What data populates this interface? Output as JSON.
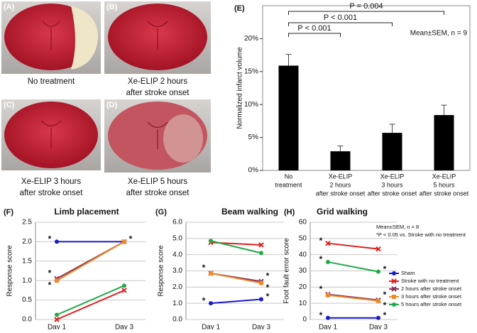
{
  "photos": [
    {
      "label": "(A)",
      "caption": [
        "No treatment"
      ]
    },
    {
      "label": "(B)",
      "caption": [
        "Xe-ELIP 2 hours",
        "after stroke onset"
      ]
    },
    {
      "label": "(C)",
      "caption": [
        "Xe-ELIP 3 hours",
        "after stroke onset"
      ]
    },
    {
      "label": "(D)",
      "caption": [
        "Xe-ELIP 5 hours",
        "after stroke onset"
      ]
    }
  ],
  "chart_data": [
    {
      "type": "bar",
      "panel": "(E)",
      "ylabel": "Normalized infarct volume",
      "categories": [
        [
          "No",
          "treatment"
        ],
        [
          "Xe-ELIP",
          "2 hours",
          "after stroke onset"
        ],
        [
          "Xe-ELIP",
          "3 hours",
          "after stroke onset"
        ],
        [
          "Xe-ELIP",
          "5 hours",
          "after stroke onset"
        ]
      ],
      "values": [
        15.9,
        2.9,
        5.7,
        8.4
      ],
      "errors": [
        1.7,
        0.8,
        1.3,
        1.5
      ],
      "color": "#000000",
      "ylim": [
        0,
        25
      ],
      "yticks": [
        {
          "value": 0,
          "label": "0%"
        },
        {
          "value": 5,
          "label": "5%"
        },
        {
          "value": 10,
          "label": "10%"
        },
        {
          "value": 15,
          "label": "15%"
        },
        {
          "value": 20,
          "label": "20%"
        }
      ],
      "comparisons": [
        "P < 0.001",
        "P < 0.001",
        "P = 0.004"
      ],
      "annotation": "Mean±SEM, n = 9"
    },
    {
      "type": "line",
      "panel": "(F)",
      "title": "Limb placement",
      "ylabel": "Response score",
      "categories": [
        "Day 1",
        "Day 3"
      ],
      "ylim": [
        0,
        2.5
      ],
      "yticks": [
        {
          "value": 0,
          "label": "0.0"
        },
        0.5,
        {
          "value": 1,
          "label": "1.0"
        },
        1.5,
        {
          "value": 2,
          "label": "2.0"
        },
        2.5
      ],
      "series": [
        {
          "color": "#1a1acc",
          "marker": "circle",
          "values": [
            2,
            2
          ],
          "marks": [
            "*",
            "*"
          ]
        },
        {
          "color": "#e02020",
          "marker": "x",
          "values": [
            0,
            0.75
          ],
          "marks": [
            null,
            null
          ]
        },
        {
          "color": "#8a2f55",
          "marker": "x",
          "values": [
            1.05,
            2
          ],
          "marks": [
            "*",
            null
          ]
        },
        {
          "color": "#ec8a2a",
          "marker": "square",
          "values": [
            1,
            2
          ],
          "marks": [
            "*",
            null
          ]
        },
        {
          "color": "#20aa48",
          "marker": "circle",
          "values": [
            0.12,
            0.87
          ],
          "marks": [
            null,
            null
          ]
        }
      ]
    },
    {
      "type": "line",
      "panel": "(G)",
      "title": "Beam walking",
      "ylabel": "Response score",
      "categories": [
        "Day 1",
        "Day 3"
      ],
      "ylim": [
        0,
        6
      ],
      "yticks": [
        {
          "value": 0,
          "label": "0.0"
        },
        {
          "value": 1,
          "label": "1.0"
        },
        {
          "value": 2,
          "label": "2.0"
        },
        {
          "value": 3,
          "label": "3.0"
        },
        {
          "value": 4,
          "label": "4.0"
        },
        {
          "value": 5,
          "label": "5.0"
        },
        {
          "value": 6,
          "label": "6.0"
        }
      ],
      "series": [
        {
          "color": "#1a1acc",
          "marker": "circle",
          "values": [
            1,
            1.25
          ],
          "marks": [
            "*",
            "*"
          ]
        },
        {
          "color": "#e02020",
          "marker": "x",
          "values": [
            4.75,
            4.6
          ],
          "marks": [
            null,
            null
          ]
        },
        {
          "color": "#8a2f55",
          "marker": "x",
          "values": [
            2.85,
            2.35
          ],
          "marks": [
            "*",
            "*"
          ]
        },
        {
          "color": "#ec8a2a",
          "marker": "square",
          "values": [
            2.85,
            2.25
          ],
          "marks": [
            null,
            "*"
          ]
        },
        {
          "color": "#20aa48",
          "marker": "circle",
          "values": [
            4.85,
            4.1
          ],
          "marks": [
            null,
            null
          ]
        }
      ]
    },
    {
      "type": "line",
      "panel": "(H)",
      "title": "Grid walking",
      "ylabel": "Foot fault error score",
      "categories": [
        "Day 1",
        "Day 3"
      ],
      "ylim": [
        0,
        60
      ],
      "yticks": [
        0,
        10,
        20,
        30,
        40,
        50,
        60
      ],
      "legend": true,
      "annotations": [
        "Mean±SEM, n = 8",
        "*P < 0.05 vs. Stroke with no treatment"
      ],
      "series": [
        {
          "name": "Sham",
          "color": "#1a1acc",
          "marker": "circle",
          "values": [
            1,
            1
          ],
          "marks": [
            "*",
            "*"
          ]
        },
        {
          "name": "Stroke with no treatment",
          "color": "#e02020",
          "marker": "x",
          "values": [
            47,
            43.5
          ],
          "marks": [
            "*",
            null
          ]
        },
        {
          "name": "2 hours after stroke onset",
          "color": "#8a2f55",
          "marker": "x",
          "values": [
            15.5,
            12
          ],
          "marks": [
            "*",
            "*"
          ]
        },
        {
          "name": "3 hours after stroke onset",
          "color": "#ec8a2a",
          "marker": "square",
          "values": [
            15,
            11.5
          ],
          "marks": [
            null,
            "*"
          ]
        },
        {
          "name": "5 hours after stroke onset",
          "color": "#20aa48",
          "marker": "circle",
          "values": [
            35.5,
            29.5
          ],
          "marks": [
            "*",
            "*"
          ]
        }
      ]
    }
  ]
}
